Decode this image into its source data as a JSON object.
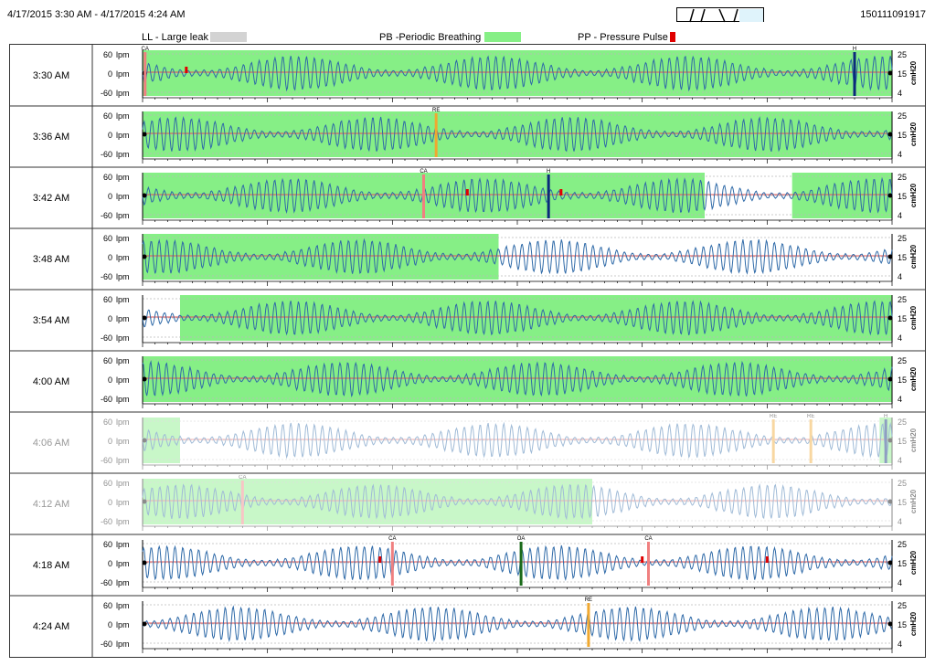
{
  "header": {
    "date_range": "4/17/2015  3:30 AM - 4/17/2015  4:24 AM",
    "serial": "150111091917"
  },
  "legend": {
    "items": [
      {
        "code": "LL",
        "label": "LL - Large leak",
        "color": "#d3d3d3"
      },
      {
        "code": "PB",
        "label": "PB -Periodic Breathing",
        "color": "#86ef86"
      },
      {
        "code": "PP",
        "label": "PP - Pressure Pulse",
        "color": "#e00000"
      }
    ]
  },
  "colors": {
    "flow": "#2f6aa8",
    "pressure": "#e05050",
    "pb": "#86ef86",
    "CA": "#f08080",
    "RE": "#f0a830",
    "H": "#0a2a7a",
    "OA": "#1a6a1a",
    "PP": "#e00000"
  },
  "chart_data": {
    "type": "line",
    "left_axis": {
      "ticks": [
        "60",
        "0",
        "-60"
      ],
      "unit": "lpm",
      "ylim": [
        -60,
        60
      ]
    },
    "right_axis": {
      "ticks": [
        "25",
        "15",
        "4"
      ],
      "label": "cmH20",
      "ylim": [
        4,
        25
      ]
    },
    "x_range_minutes": [
      0,
      6
    ],
    "strips": [
      {
        "time": "3:30 AM",
        "dimmed": false,
        "pb": [
          [
            0,
            6
          ]
        ],
        "events": [
          {
            "type": "CA",
            "t": 0.02
          },
          {
            "type": "PP",
            "t": 0.35
          },
          {
            "type": "H",
            "t": 5.7
          }
        ],
        "pressure": 15
      },
      {
        "time": "3:36 AM",
        "dimmed": false,
        "pb": [
          [
            0,
            6
          ]
        ],
        "events": [
          {
            "type": "RE",
            "t": 2.35
          }
        ],
        "pressure": 15
      },
      {
        "time": "3:42 AM",
        "dimmed": false,
        "pb": [
          [
            0,
            4.5
          ],
          [
            5.2,
            6
          ]
        ],
        "events": [
          {
            "type": "CA",
            "t": 2.25
          },
          {
            "type": "PP",
            "t": 2.6
          },
          {
            "type": "H",
            "t": 3.25
          },
          {
            "type": "PP",
            "t": 3.35
          }
        ],
        "pressure": 15
      },
      {
        "time": "3:48 AM",
        "dimmed": false,
        "pb": [
          [
            0,
            2.85
          ]
        ],
        "events": [],
        "pressure": 15
      },
      {
        "time": "3:54 AM",
        "dimmed": false,
        "pb": [
          [
            0.3,
            6
          ]
        ],
        "events": [],
        "pressure": 15
      },
      {
        "time": "4:00 AM",
        "dimmed": false,
        "pb": [
          [
            0,
            6
          ]
        ],
        "events": [],
        "pressure": 15
      },
      {
        "time": "4:06 AM",
        "dimmed": true,
        "pb": [
          [
            0,
            0.3
          ],
          [
            5.9,
            6
          ]
        ],
        "events": [
          {
            "type": "RE",
            "t": 5.05
          },
          {
            "type": "RE",
            "t": 5.35
          },
          {
            "type": "H",
            "t": 5.95
          }
        ],
        "pressure": 15
      },
      {
        "time": "4:12 AM",
        "dimmed": true,
        "pb": [
          [
            0,
            3.6
          ]
        ],
        "events": [
          {
            "type": "CA",
            "t": 0.8
          }
        ],
        "pressure": 15
      },
      {
        "time": "4:18 AM",
        "dimmed": false,
        "pb": [],
        "events": [
          {
            "type": "PP",
            "t": 1.9
          },
          {
            "type": "CA",
            "t": 2.0
          },
          {
            "type": "OA",
            "t": 3.03
          },
          {
            "type": "PP",
            "t": 4.0
          },
          {
            "type": "CA",
            "t": 4.05
          },
          {
            "type": "PP",
            "t": 5.0
          }
        ],
        "pressure": 15
      },
      {
        "time": "4:24 AM",
        "dimmed": false,
        "pb": [],
        "events": [
          {
            "type": "RE",
            "t": 3.57
          }
        ],
        "pressure": 15
      }
    ]
  }
}
